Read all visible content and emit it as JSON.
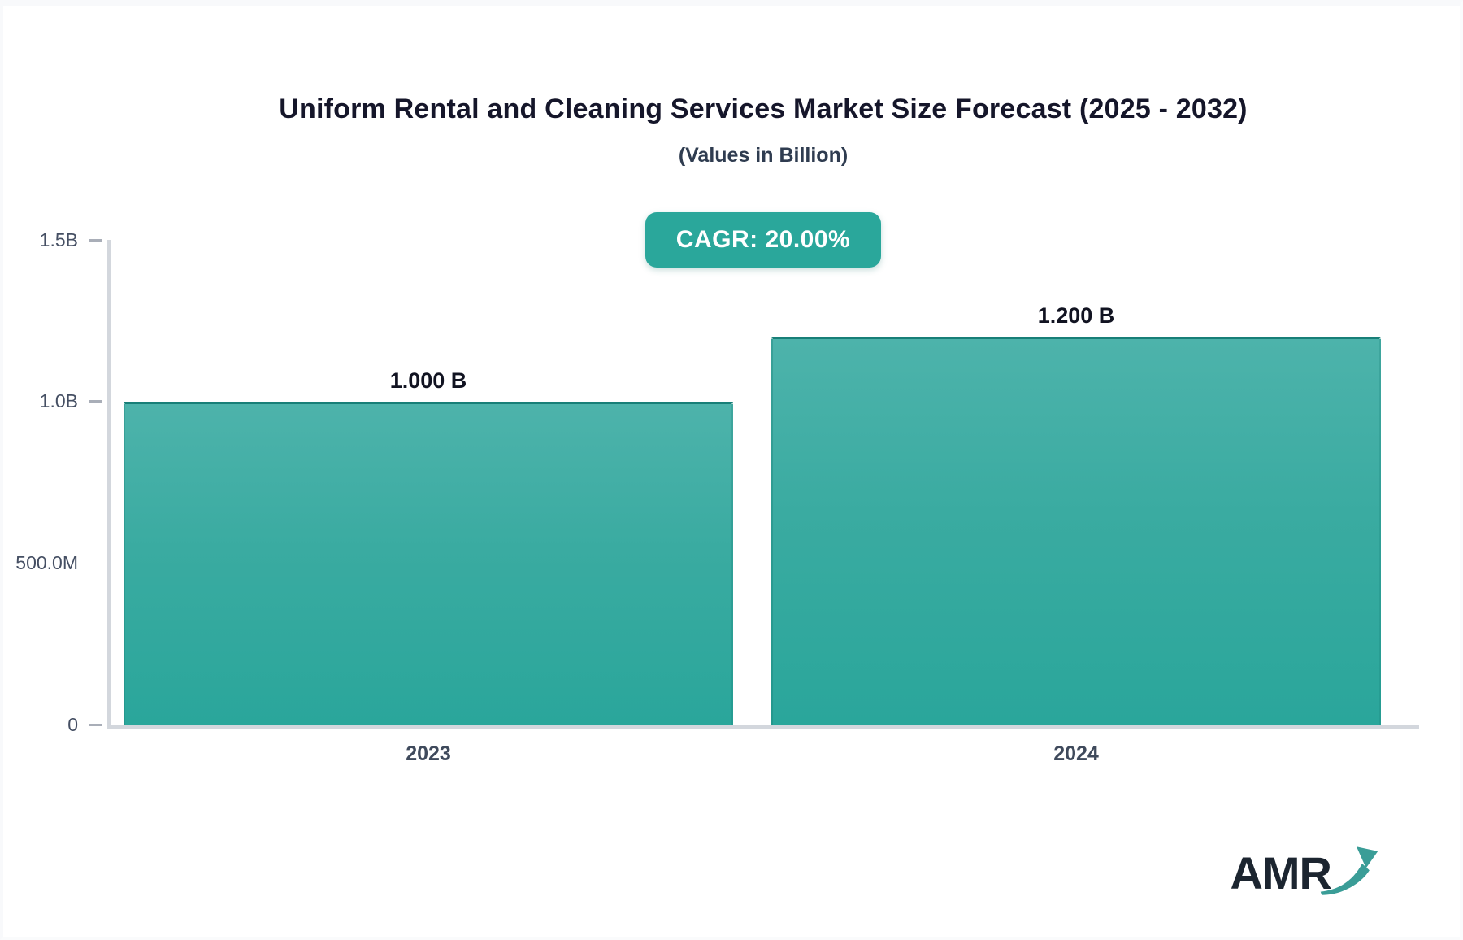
{
  "page": {
    "title": "Uniform Rental and Cleaning Services Market Size Forecast (2025 - 2032)",
    "subtitle": "(Values in Billion)",
    "cagr_badge": "CAGR: 20.00%",
    "logo_text": "AMR"
  },
  "colors": {
    "bar_gradient_top": "#4db3ab",
    "bar_gradient_bottom": "#2aa69b",
    "bar_top_border": "#187f78",
    "badge_background": "#2aa79b",
    "badge_text": "#ffffff",
    "axis_line": "#d3d7dd",
    "tick_dash": "#a9aeb8",
    "title_text": "#15162a",
    "subtitle_text": "#2f3c50",
    "axis_label_text": "#454f63",
    "logo_text_color": "#1c2530",
    "logo_arrow_color": "#3a9d97"
  },
  "chart_data": {
    "type": "bar",
    "title": "Uniform Rental and Cleaning Services Market Size Forecast (2025 - 2032)",
    "subtitle": "(Values in Billion)",
    "annotation": "CAGR: 20.00%",
    "unit": "Billion",
    "categories": [
      "2023",
      "2024"
    ],
    "values": [
      1.0,
      1.2
    ],
    "value_labels": [
      "1.000 B",
      "1.200 B"
    ],
    "ylim": [
      0,
      1.5
    ],
    "y_ticks": [
      {
        "label": "1.5B",
        "value": 1.5,
        "dash": true
      },
      {
        "label": "1.0B",
        "value": 1.0,
        "dash": true
      },
      {
        "label": "500.0M",
        "value": 0.5,
        "dash": false
      },
      {
        "label": "0",
        "value": 0.0,
        "dash": true
      }
    ],
    "grid": false,
    "legend": false
  }
}
